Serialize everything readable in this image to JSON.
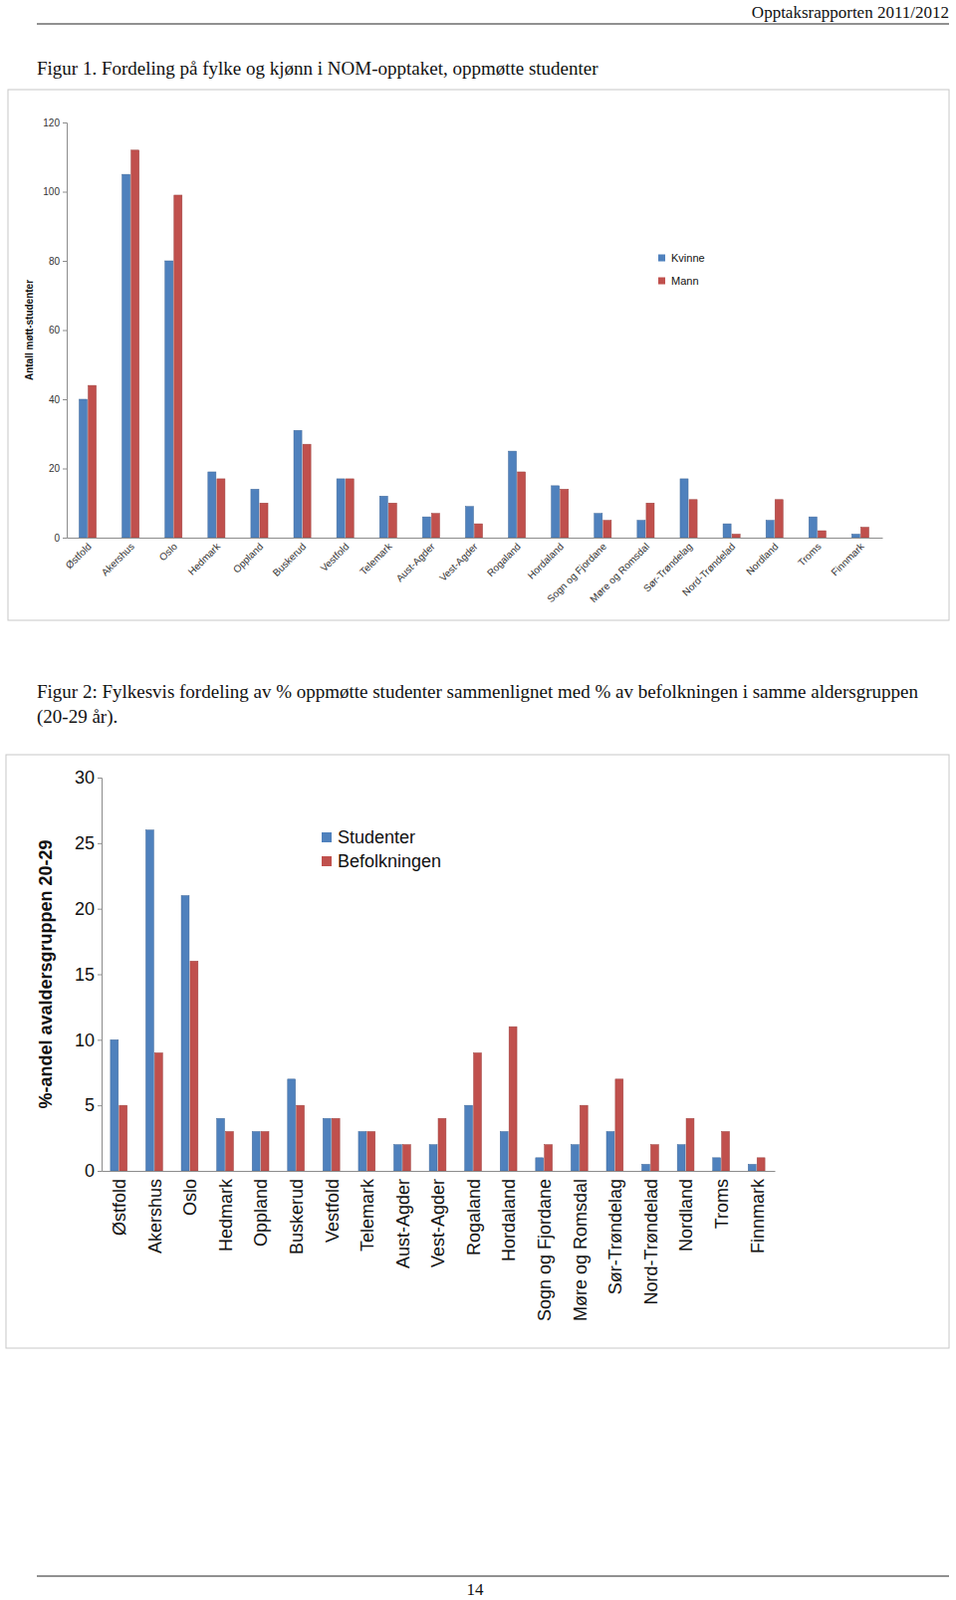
{
  "header": "Opptaksrapporten 2011/2012",
  "page_number": 14,
  "chart_data": [
    {
      "type": "bar",
      "title": "Figur 1. Fordeling på fylke og kjønn i NOM-opptaket, oppmøtte studenter",
      "y_label": "Antall møtt-studenter",
      "categories": [
        "Østfold",
        "Akershus",
        "Oslo",
        "Hedmark",
        "Oppland",
        "Buskerud",
        "Vestfold",
        "Telemark",
        "Aust-Agder",
        "Vest-Agder",
        "Rogaland",
        "Hordaland",
        "Sogn og Fjordane",
        "Møre og Romsdal",
        "Sør-Trøndelag",
        "Nord-Trøndelad",
        "Nordland",
        "Troms",
        "Finnmark"
      ],
      "series": [
        {
          "name": "Kvinne",
          "color": "#4f81bd",
          "values": [
            40,
            105,
            80,
            19,
            14,
            31,
            17,
            12,
            6,
            9,
            25,
            15,
            7,
            5,
            17,
            4,
            5,
            6,
            1
          ]
        },
        {
          "name": "Mann",
          "color": "#c0504d",
          "values": [
            44,
            112,
            99,
            17,
            10,
            27,
            17,
            10,
            7,
            4,
            19,
            14,
            5,
            10,
            11,
            1,
            11,
            2,
            3
          ]
        }
      ],
      "ylim": [
        0,
        120
      ],
      "yticks": [
        0,
        20,
        40,
        60,
        80,
        100,
        120
      ],
      "grid": false,
      "legend": "right"
    },
    {
      "type": "bar",
      "title": "Figur 2: Fylkesvis fordeling av % oppmøtte studenter sammenlignet med % av befolkningen i samme aldersgruppen (20-29 år).",
      "y_label": "%-andel avaldersgruppen 20-29",
      "categories": [
        "Østfold",
        "Akershus",
        "Oslo",
        "Hedmark",
        "Oppland",
        "Buskerud",
        "Vestfold",
        "Telemark",
        "Aust-Agder",
        "Vest-Agder",
        "Rogaland",
        "Hordaland",
        "Sogn og Fjordane",
        "Møre og Romsdal",
        "Sør-Trøndelag",
        "Nord-Trøndelad",
        "Nordland",
        "Troms",
        "Finnmark"
      ],
      "series": [
        {
          "name": "Studenter",
          "color": "#4f81bd",
          "values": [
            10,
            26,
            21,
            4,
            3,
            7,
            4,
            3,
            2,
            2,
            5,
            3,
            1,
            2,
            3,
            0.5,
            2,
            1,
            0.5
          ]
        },
        {
          "name": "Befolkningen",
          "color": "#c0504d",
          "values": [
            5,
            9,
            16,
            3,
            3,
            5,
            4,
            3,
            2,
            4,
            9,
            11,
            2,
            5,
            7,
            2,
            4,
            3,
            1
          ]
        }
      ],
      "ylim": [
        0,
        30
      ],
      "yticks": [
        0,
        5,
        10,
        15,
        20,
        25,
        30
      ],
      "grid": false,
      "legend": "top"
    }
  ]
}
